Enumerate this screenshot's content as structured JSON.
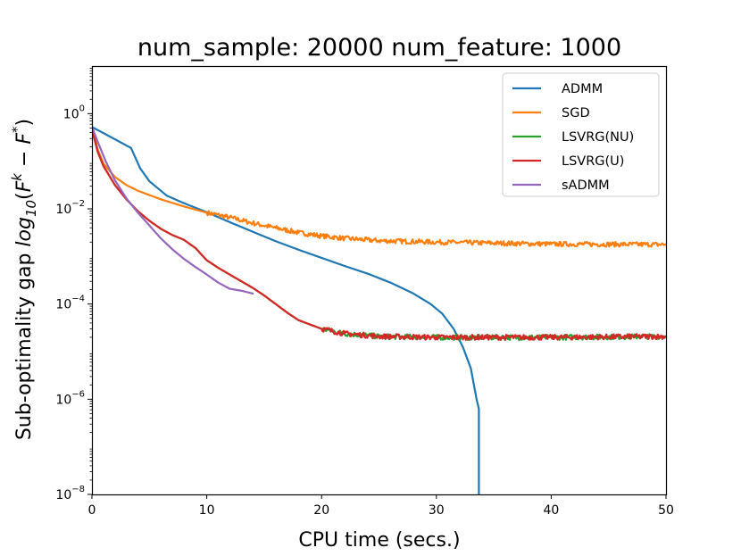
{
  "chart_data": {
    "type": "line",
    "title": "num_sample: 20000 num_feature: 1000",
    "xlabel": "CPU time (secs.)",
    "ylabel": "Sub-optimality gap log10(F^k − F^*)",
    "ylabel_parts": {
      "prefix": "Sub-optimality gap ",
      "log": "log",
      "sub": "10",
      "open": "(",
      "F1": "F",
      "k": "k",
      "minus": " − ",
      "F2": "F",
      "star": "*",
      "close": ")"
    },
    "xlim": [
      0,
      50
    ],
    "ylim_log10": [
      -8,
      1
    ],
    "x_ticks": [
      0,
      10,
      20,
      30,
      40,
      50
    ],
    "x_tick_labels": [
      "0",
      "10",
      "20",
      "30",
      "40",
      "50"
    ],
    "y_ticks_log10": [
      0,
      -2,
      -4,
      -6,
      -8
    ],
    "y_tick_labels": [
      {
        "base": "10",
        "exp": "0"
      },
      {
        "base": "10",
        "exp": "−2"
      },
      {
        "base": "10",
        "exp": "−4"
      },
      {
        "base": "10",
        "exp": "−6"
      },
      {
        "base": "10",
        "exp": "−8"
      }
    ],
    "legend_position": "upper-right",
    "series": [
      {
        "name": "ADMM",
        "color": "#1f77b4",
        "noise": 0,
        "points": [
          [
            0,
            -0.28
          ],
          [
            3.4,
            -0.72
          ],
          [
            4.2,
            -1.15
          ],
          [
            5,
            -1.42
          ],
          [
            6.5,
            -1.72
          ],
          [
            8,
            -1.88
          ],
          [
            10,
            -2.07
          ],
          [
            12,
            -2.28
          ],
          [
            14,
            -2.48
          ],
          [
            16,
            -2.68
          ],
          [
            18,
            -2.86
          ],
          [
            20,
            -3.03
          ],
          [
            22,
            -3.2
          ],
          [
            24,
            -3.36
          ],
          [
            26,
            -3.55
          ],
          [
            28,
            -3.78
          ],
          [
            29.5,
            -4.0
          ],
          [
            30.5,
            -4.2
          ],
          [
            31.5,
            -4.52
          ],
          [
            32.3,
            -4.9
          ],
          [
            33,
            -5.35
          ],
          [
            33.5,
            -6.0
          ],
          [
            33.7,
            -6.2
          ],
          [
            33.7,
            -8.0
          ]
        ]
      },
      {
        "name": "SGD",
        "color": "#ff7f0e",
        "noise": 0.05,
        "noise_from": 10,
        "points": [
          [
            0,
            -0.28
          ],
          [
            0.5,
            -0.75
          ],
          [
            1,
            -1.05
          ],
          [
            2,
            -1.33
          ],
          [
            3,
            -1.5
          ],
          [
            4,
            -1.62
          ],
          [
            6,
            -1.8
          ],
          [
            8,
            -1.95
          ],
          [
            10,
            -2.08
          ],
          [
            12,
            -2.18
          ],
          [
            14,
            -2.3
          ],
          [
            16,
            -2.4
          ],
          [
            18,
            -2.5
          ],
          [
            20,
            -2.57
          ],
          [
            22,
            -2.62
          ],
          [
            25,
            -2.67
          ],
          [
            30,
            -2.7
          ],
          [
            40,
            -2.74
          ],
          [
            50,
            -2.75
          ]
        ]
      },
      {
        "name": "LSVRG(NU)",
        "color": "#2ca02c",
        "noise": 0.055,
        "noise_from": 20,
        "points": [
          [
            0,
            -0.32
          ],
          [
            0.5,
            -0.8
          ],
          [
            1,
            -1.1
          ],
          [
            2,
            -1.5
          ],
          [
            3,
            -1.8
          ],
          [
            4,
            -2.05
          ],
          [
            5,
            -2.25
          ],
          [
            6,
            -2.42
          ],
          [
            7,
            -2.55
          ],
          [
            8,
            -2.65
          ],
          [
            9,
            -2.82
          ],
          [
            10,
            -3.08
          ],
          [
            11,
            -3.24
          ],
          [
            12,
            -3.38
          ],
          [
            13,
            -3.52
          ],
          [
            14,
            -3.66
          ],
          [
            15,
            -3.82
          ],
          [
            16,
            -4.0
          ],
          [
            17,
            -4.18
          ],
          [
            18,
            -4.34
          ],
          [
            20,
            -4.52
          ],
          [
            22,
            -4.62
          ],
          [
            25,
            -4.68
          ],
          [
            30,
            -4.7
          ],
          [
            40,
            -4.7
          ],
          [
            50,
            -4.68
          ]
        ]
      },
      {
        "name": "LSVRG(U)",
        "color": "#d62728",
        "noise": 0.055,
        "noise_from": 20,
        "points": [
          [
            0,
            -0.32
          ],
          [
            0.5,
            -0.8
          ],
          [
            1,
            -1.1
          ],
          [
            2,
            -1.5
          ],
          [
            3,
            -1.8
          ],
          [
            4,
            -2.05
          ],
          [
            5,
            -2.25
          ],
          [
            6,
            -2.42
          ],
          [
            7,
            -2.55
          ],
          [
            8,
            -2.65
          ],
          [
            9,
            -2.82
          ],
          [
            10,
            -3.08
          ],
          [
            11,
            -3.24
          ],
          [
            12,
            -3.38
          ],
          [
            13,
            -3.52
          ],
          [
            14,
            -3.66
          ],
          [
            15,
            -3.82
          ],
          [
            16,
            -4.0
          ],
          [
            17,
            -4.18
          ],
          [
            18,
            -4.34
          ],
          [
            20,
            -4.52
          ],
          [
            22,
            -4.62
          ],
          [
            25,
            -4.68
          ],
          [
            30,
            -4.7
          ],
          [
            40,
            -4.7
          ],
          [
            50,
            -4.68
          ]
        ]
      },
      {
        "name": "sADMM",
        "color": "#9467bd",
        "noise": 0,
        "points": [
          [
            0,
            -0.28
          ],
          [
            0.6,
            -0.65
          ],
          [
            1.2,
            -1.0
          ],
          [
            2,
            -1.4
          ],
          [
            3,
            -1.78
          ],
          [
            4,
            -2.08
          ],
          [
            5,
            -2.35
          ],
          [
            6,
            -2.62
          ],
          [
            7,
            -2.85
          ],
          [
            8,
            -3.05
          ],
          [
            9,
            -3.22
          ],
          [
            10,
            -3.38
          ],
          [
            11,
            -3.55
          ],
          [
            12,
            -3.68
          ],
          [
            13,
            -3.72
          ],
          [
            14,
            -3.78
          ]
        ]
      }
    ]
  }
}
